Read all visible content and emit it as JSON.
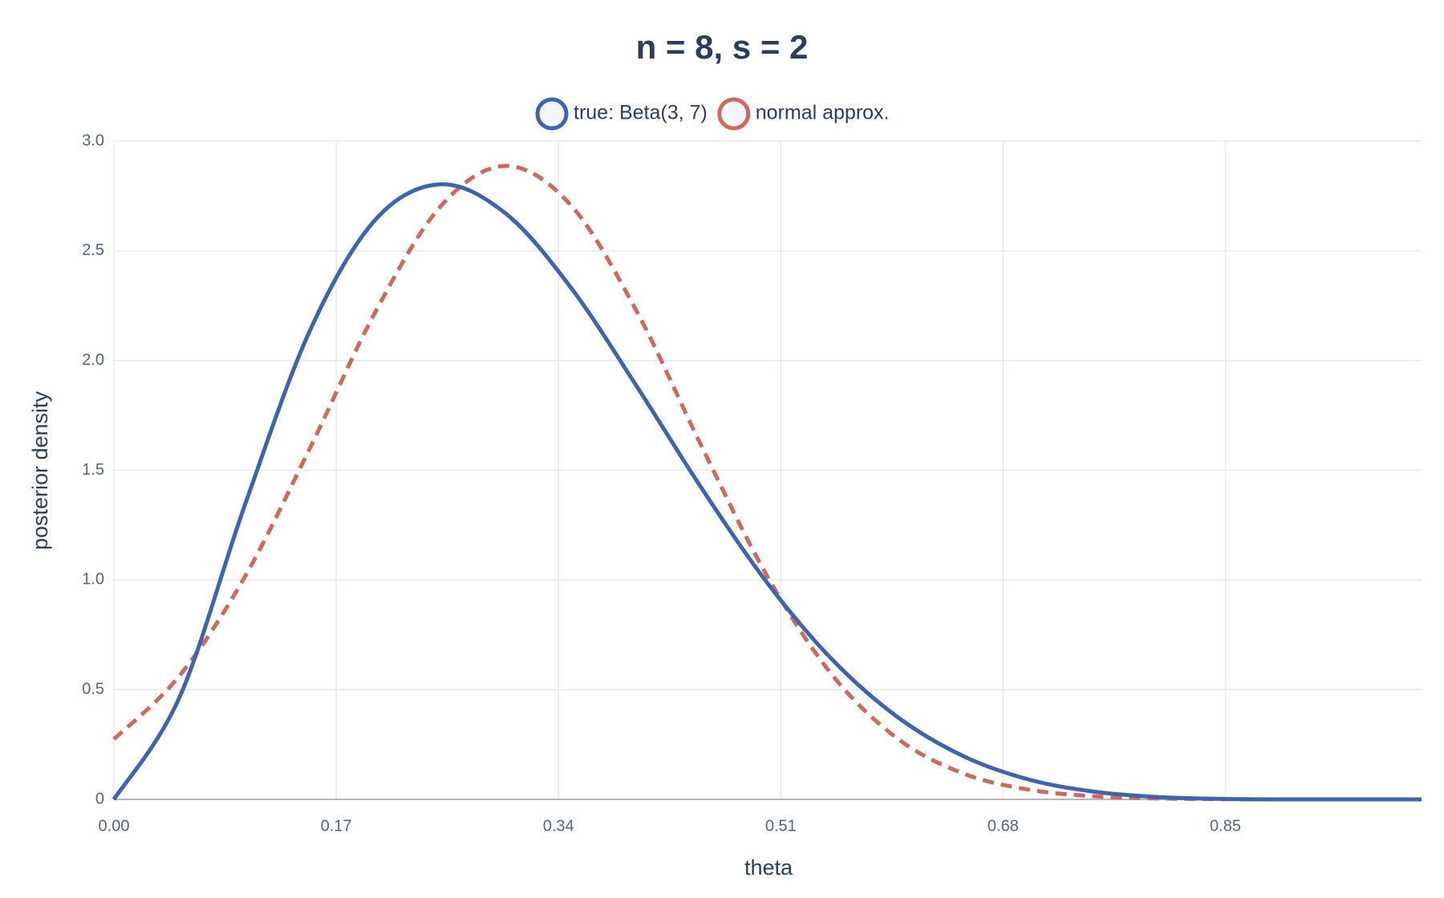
{
  "chart_data": {
    "type": "line",
    "title": "n = 8, s = 2",
    "xlabel": "theta",
    "ylabel": "posterior density",
    "x": [
      0,
      0.05,
      0.1,
      0.15,
      0.2,
      0.25,
      0.3,
      0.35,
      0.4,
      0.45,
      0.5,
      0.55,
      0.6,
      0.65,
      0.7,
      0.75,
      0.8,
      0.85,
      0.9,
      0.95,
      1
    ],
    "series": [
      {
        "name": "true: Beta(3, 7)",
        "color": "#3d64b0",
        "dash": false,
        "values": [
          0,
          0.463,
          1.339,
          2.138,
          2.642,
          2.803,
          2.668,
          2.328,
          1.881,
          1.413,
          0.984,
          0.633,
          0.372,
          0.196,
          0.09,
          0.035,
          0.01,
          0.002,
          0,
          0,
          0
        ]
      },
      {
        "name": "normal approx.",
        "color": "#d2675b",
        "dash": true,
        "values": [
          0.274,
          0.562,
          1.013,
          1.602,
          2.222,
          2.704,
          2.887,
          2.704,
          2.222,
          1.602,
          1.013,
          0.562,
          0.274,
          0.117,
          0.044,
          0.014,
          0.004,
          0.001,
          0,
          0,
          0
        ]
      }
    ],
    "xlim": [
      0,
      1
    ],
    "xticks": [
      {
        "value": 0,
        "label": "0.00"
      },
      0.17,
      0.34,
      0.51,
      0.68,
      0.85
    ],
    "ylim": [
      0,
      3
    ],
    "yticks": [
      0,
      0.5,
      {
        "value": 1,
        "label": "1.0"
      },
      1.5,
      {
        "value": 2,
        "label": "2.0"
      },
      2.5,
      {
        "value": 3,
        "label": "3.0"
      }
    ],
    "grid": true
  }
}
